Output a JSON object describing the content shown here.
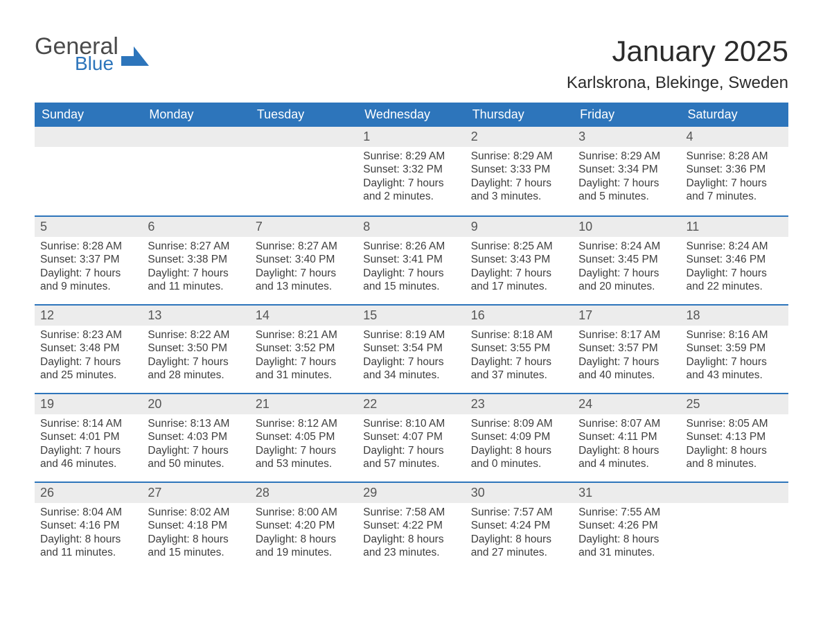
{
  "brand": {
    "general": "General",
    "blue": "Blue",
    "shape_color": "#2d75bb",
    "text_gray": "#4a4a4a"
  },
  "header": {
    "month_title": "January 2025",
    "location": "Karlskrona, Blekinge, Sweden"
  },
  "colors": {
    "header_bg": "#2d75bb",
    "header_text": "#ffffff",
    "daynum_bg": "#ececec",
    "week_border": "#2d75bb",
    "body_text": "#3d3d3d",
    "page_bg": "#ffffff"
  },
  "typography": {
    "month_title_fontsize": 42,
    "location_fontsize": 24,
    "weekday_fontsize": 18,
    "daynum_fontsize": 18,
    "body_fontsize": 15.5
  },
  "labels": {
    "sunrise": "Sunrise",
    "sunset": "Sunset",
    "daylight": "Daylight"
  },
  "weekdays": [
    "Sunday",
    "Monday",
    "Tuesday",
    "Wednesday",
    "Thursday",
    "Friday",
    "Saturday"
  ],
  "weeks": [
    [
      null,
      null,
      null,
      {
        "n": "1",
        "sunrise": "8:29 AM",
        "sunset": "3:32 PM",
        "daylight": "7 hours and 2 minutes."
      },
      {
        "n": "2",
        "sunrise": "8:29 AM",
        "sunset": "3:33 PM",
        "daylight": "7 hours and 3 minutes."
      },
      {
        "n": "3",
        "sunrise": "8:29 AM",
        "sunset": "3:34 PM",
        "daylight": "7 hours and 5 minutes."
      },
      {
        "n": "4",
        "sunrise": "8:28 AM",
        "sunset": "3:36 PM",
        "daylight": "7 hours and 7 minutes."
      }
    ],
    [
      {
        "n": "5",
        "sunrise": "8:28 AM",
        "sunset": "3:37 PM",
        "daylight": "7 hours and 9 minutes."
      },
      {
        "n": "6",
        "sunrise": "8:27 AM",
        "sunset": "3:38 PM",
        "daylight": "7 hours and 11 minutes."
      },
      {
        "n": "7",
        "sunrise": "8:27 AM",
        "sunset": "3:40 PM",
        "daylight": "7 hours and 13 minutes."
      },
      {
        "n": "8",
        "sunrise": "8:26 AM",
        "sunset": "3:41 PM",
        "daylight": "7 hours and 15 minutes."
      },
      {
        "n": "9",
        "sunrise": "8:25 AM",
        "sunset": "3:43 PM",
        "daylight": "7 hours and 17 minutes."
      },
      {
        "n": "10",
        "sunrise": "8:24 AM",
        "sunset": "3:45 PM",
        "daylight": "7 hours and 20 minutes."
      },
      {
        "n": "11",
        "sunrise": "8:24 AM",
        "sunset": "3:46 PM",
        "daylight": "7 hours and 22 minutes."
      }
    ],
    [
      {
        "n": "12",
        "sunrise": "8:23 AM",
        "sunset": "3:48 PM",
        "daylight": "7 hours and 25 minutes."
      },
      {
        "n": "13",
        "sunrise": "8:22 AM",
        "sunset": "3:50 PM",
        "daylight": "7 hours and 28 minutes."
      },
      {
        "n": "14",
        "sunrise": "8:21 AM",
        "sunset": "3:52 PM",
        "daylight": "7 hours and 31 minutes."
      },
      {
        "n": "15",
        "sunrise": "8:19 AM",
        "sunset": "3:54 PM",
        "daylight": "7 hours and 34 minutes."
      },
      {
        "n": "16",
        "sunrise": "8:18 AM",
        "sunset": "3:55 PM",
        "daylight": "7 hours and 37 minutes."
      },
      {
        "n": "17",
        "sunrise": "8:17 AM",
        "sunset": "3:57 PM",
        "daylight": "7 hours and 40 minutes."
      },
      {
        "n": "18",
        "sunrise": "8:16 AM",
        "sunset": "3:59 PM",
        "daylight": "7 hours and 43 minutes."
      }
    ],
    [
      {
        "n": "19",
        "sunrise": "8:14 AM",
        "sunset": "4:01 PM",
        "daylight": "7 hours and 46 minutes."
      },
      {
        "n": "20",
        "sunrise": "8:13 AM",
        "sunset": "4:03 PM",
        "daylight": "7 hours and 50 minutes."
      },
      {
        "n": "21",
        "sunrise": "8:12 AM",
        "sunset": "4:05 PM",
        "daylight": "7 hours and 53 minutes."
      },
      {
        "n": "22",
        "sunrise": "8:10 AM",
        "sunset": "4:07 PM",
        "daylight": "7 hours and 57 minutes."
      },
      {
        "n": "23",
        "sunrise": "8:09 AM",
        "sunset": "4:09 PM",
        "daylight": "8 hours and 0 minutes."
      },
      {
        "n": "24",
        "sunrise": "8:07 AM",
        "sunset": "4:11 PM",
        "daylight": "8 hours and 4 minutes."
      },
      {
        "n": "25",
        "sunrise": "8:05 AM",
        "sunset": "4:13 PM",
        "daylight": "8 hours and 8 minutes."
      }
    ],
    [
      {
        "n": "26",
        "sunrise": "8:04 AM",
        "sunset": "4:16 PM",
        "daylight": "8 hours and 11 minutes."
      },
      {
        "n": "27",
        "sunrise": "8:02 AM",
        "sunset": "4:18 PM",
        "daylight": "8 hours and 15 minutes."
      },
      {
        "n": "28",
        "sunrise": "8:00 AM",
        "sunset": "4:20 PM",
        "daylight": "8 hours and 19 minutes."
      },
      {
        "n": "29",
        "sunrise": "7:58 AM",
        "sunset": "4:22 PM",
        "daylight": "8 hours and 23 minutes."
      },
      {
        "n": "30",
        "sunrise": "7:57 AM",
        "sunset": "4:24 PM",
        "daylight": "8 hours and 27 minutes."
      },
      {
        "n": "31",
        "sunrise": "7:55 AM",
        "sunset": "4:26 PM",
        "daylight": "8 hours and 31 minutes."
      },
      null
    ]
  ]
}
